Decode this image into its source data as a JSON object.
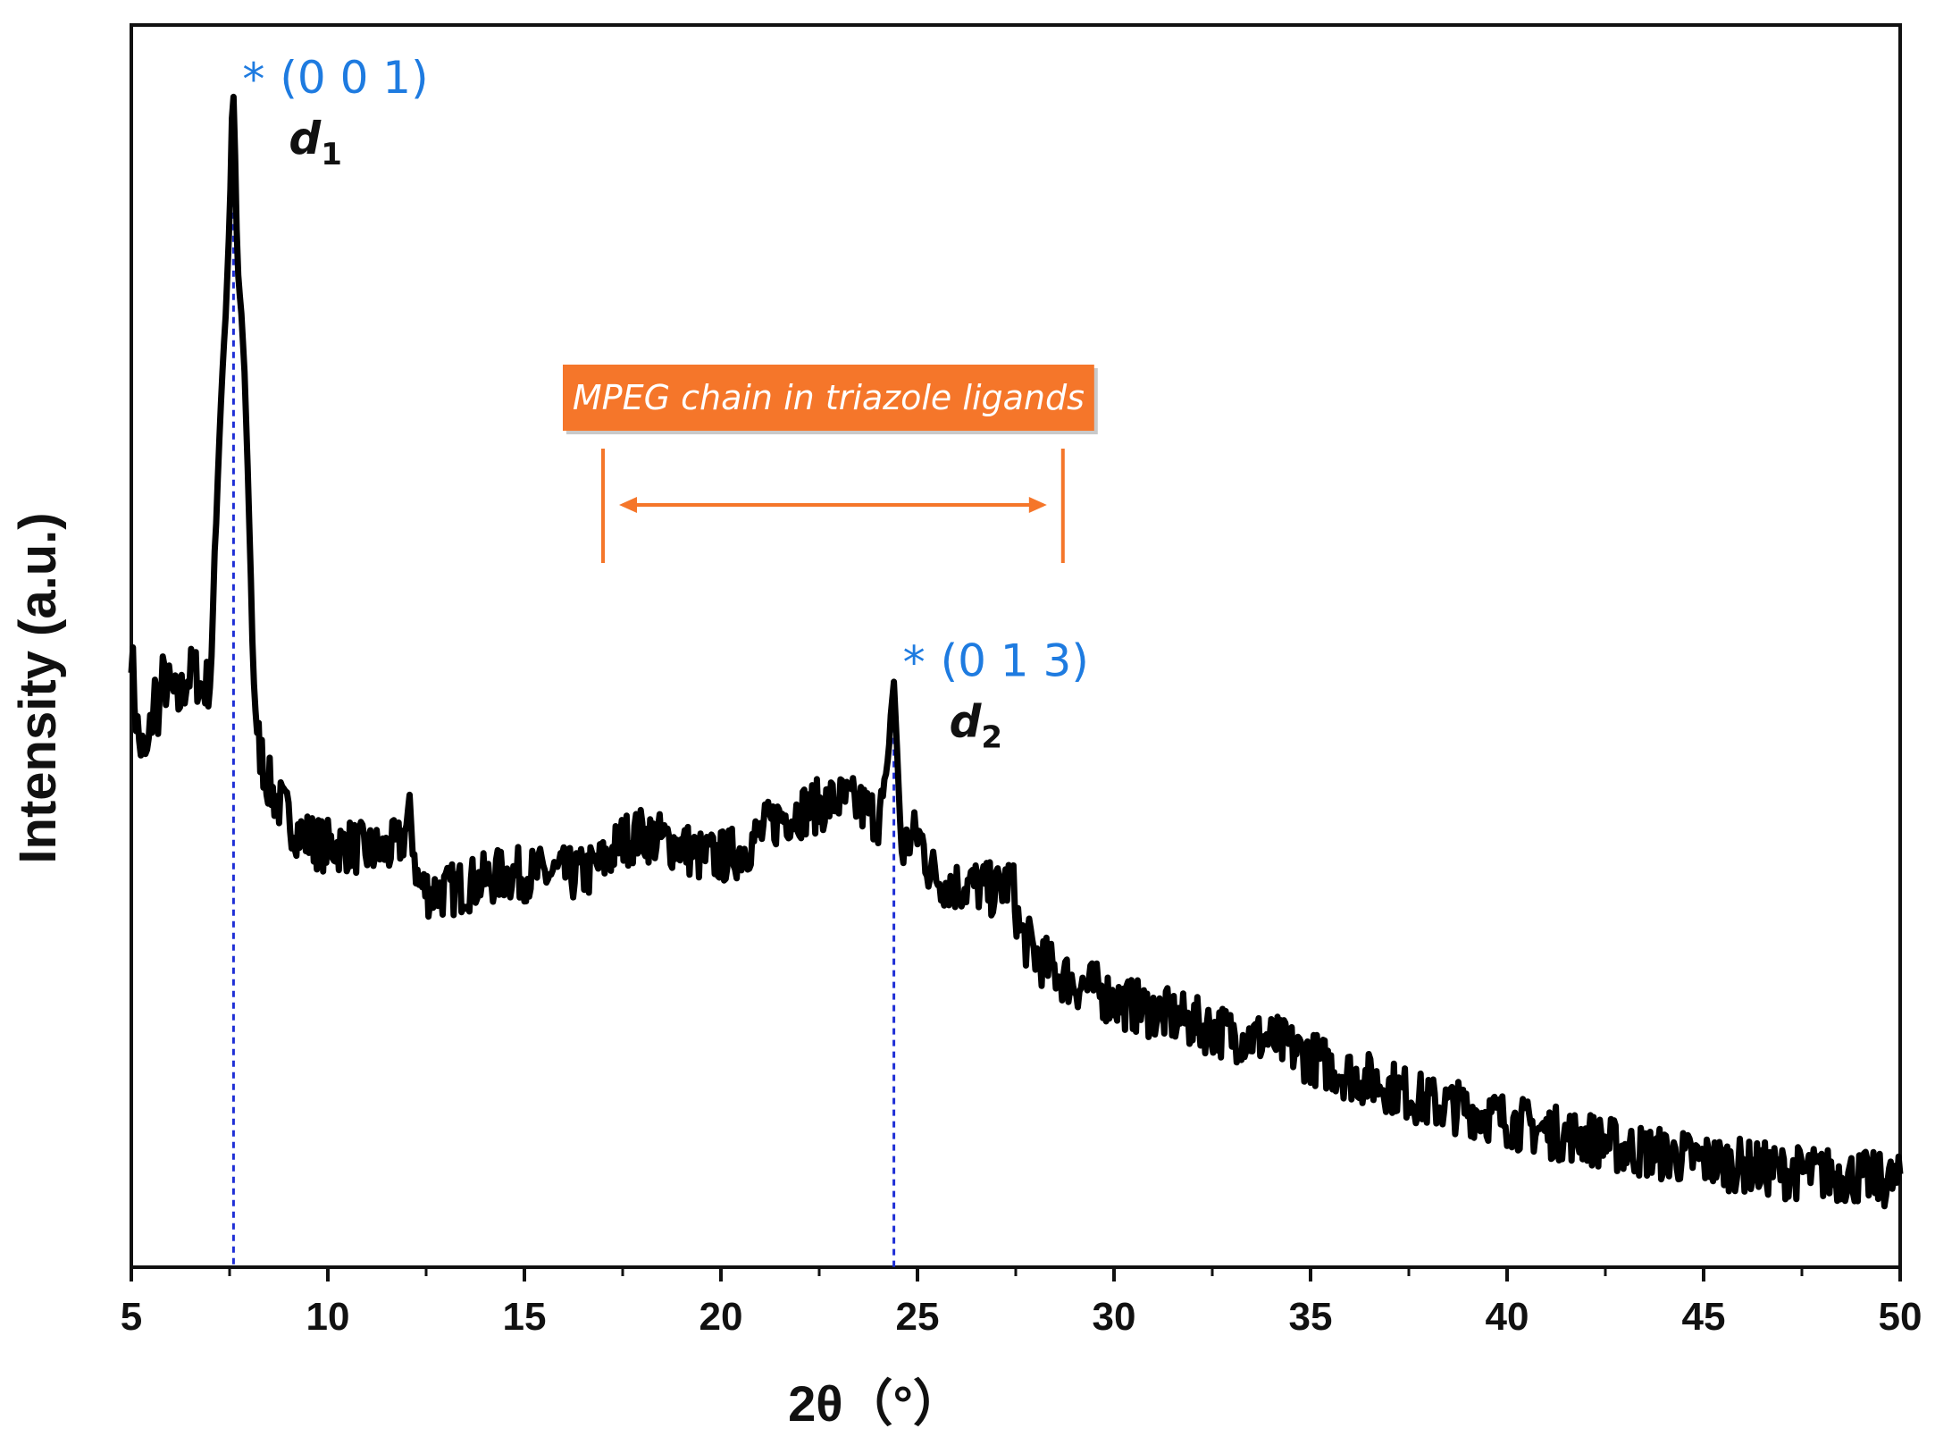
{
  "chart_data": {
    "type": "line",
    "title": "",
    "xlabel": "2θ（°）",
    "ylabel": "Intensity (a.u.)",
    "xlim": [
      5,
      50
    ],
    "ylim": [
      0,
      100
    ],
    "xticks": [
      5,
      10,
      15,
      20,
      25,
      30,
      35,
      40,
      45,
      50
    ],
    "xtick_labels": [
      "5",
      "10",
      "15",
      "20",
      "25",
      "30",
      "35",
      "40",
      "45",
      "50"
    ],
    "grid": false,
    "legend": "none",
    "y_ticks_shown": false,
    "series_color": "#000000",
    "guide_color": "#1f2fd6",
    "annotation_color": "#1e7be0",
    "range_color": "#f5762a",
    "series": [
      {
        "x": [
          5.0,
          5.1,
          5.2,
          5.4,
          5.5,
          5.6,
          5.7,
          5.8,
          6.0,
          6.2,
          6.4,
          6.6,
          6.8,
          7.0,
          7.1,
          7.2,
          7.3,
          7.4,
          7.5,
          7.55,
          7.6,
          7.65,
          7.7,
          7.8,
          7.9,
          8.0,
          8.1,
          8.2,
          8.4,
          8.6,
          8.8,
          9.0,
          9.3,
          9.6,
          9.9,
          10.2,
          10.6,
          11.0,
          11.4,
          11.8,
          12.0,
          12.1,
          12.3,
          12.6,
          13.0,
          13.5,
          14.0,
          14.5,
          15.0,
          15.5,
          16.0,
          16.5,
          17.0,
          17.5,
          18.0,
          18.5,
          19.0,
          19.5,
          20.0,
          20.5,
          21.0,
          21.5,
          22.0,
          22.5,
          23.0,
          23.5,
          24.0,
          24.2,
          24.3,
          24.4,
          24.5,
          24.6,
          24.8,
          25.0,
          25.1,
          25.3,
          25.6,
          26.0,
          26.5,
          27.0,
          27.4,
          27.6,
          27.8,
          28.0,
          28.5,
          29.0,
          29.5,
          30.0,
          31.0,
          32.0,
          33.0,
          34.0,
          35.0,
          36.0,
          37.0,
          38.0,
          39.0,
          40.0,
          41.0,
          42.0,
          43.0,
          44.0,
          45.0,
          46.0,
          47.0,
          48.0,
          49.0,
          50.0
        ],
        "values": [
          51.0,
          45.5,
          42.5,
          41.0,
          44.0,
          47.0,
          45.0,
          48.0,
          47.0,
          46.0,
          48.0,
          49.0,
          47.0,
          48.0,
          55.0,
          66.0,
          74.0,
          80.0,
          88.0,
          96.0,
          99.0,
          92.0,
          84.0,
          80.0,
          73.0,
          62.0,
          49.0,
          43.0,
          40.0,
          38.0,
          37.0,
          36.0,
          34.5,
          34.0,
          33.5,
          33.5,
          33.5,
          33.0,
          33.0,
          33.5,
          35.0,
          36.0,
          30.0,
          29.5,
          29.5,
          30.0,
          30.5,
          31.0,
          31.0,
          31.0,
          31.0,
          31.0,
          32.0,
          34.0,
          34.5,
          34.0,
          33.5,
          32.5,
          32.5,
          33.0,
          34.5,
          36.0,
          36.5,
          37.0,
          37.5,
          37.0,
          36.0,
          38.0,
          44.0,
          48.0,
          40.0,
          33.0,
          34.0,
          34.5,
          34.0,
          31.5,
          30.5,
          30.0,
          30.0,
          29.5,
          30.5,
          26.0,
          25.0,
          24.0,
          22.5,
          21.5,
          21.0,
          20.0,
          19.0,
          18.0,
          17.0,
          16.5,
          15.0,
          13.5,
          12.5,
          11.0,
          10.5,
          9.5,
          8.5,
          8.0,
          7.0,
          6.5,
          6.0,
          5.5,
          5.0,
          4.8,
          4.5,
          4.0
        ]
      }
    ],
    "peak_markers": [
      {
        "x": 7.6,
        "star": "*",
        "label": "(0 0 1)",
        "d_base": "d",
        "d_sub": "1",
        "peak_y": 99.0
      },
      {
        "x": 24.4,
        "star": "*",
        "label": "(0 1 3)",
        "d_base": "d",
        "d_sub": "2",
        "peak_y": 48.0
      }
    ],
    "range_annotation": {
      "text": "MPEG chain in triazole ligands",
      "x_start": 17.0,
      "x_end": 28.7
    }
  }
}
